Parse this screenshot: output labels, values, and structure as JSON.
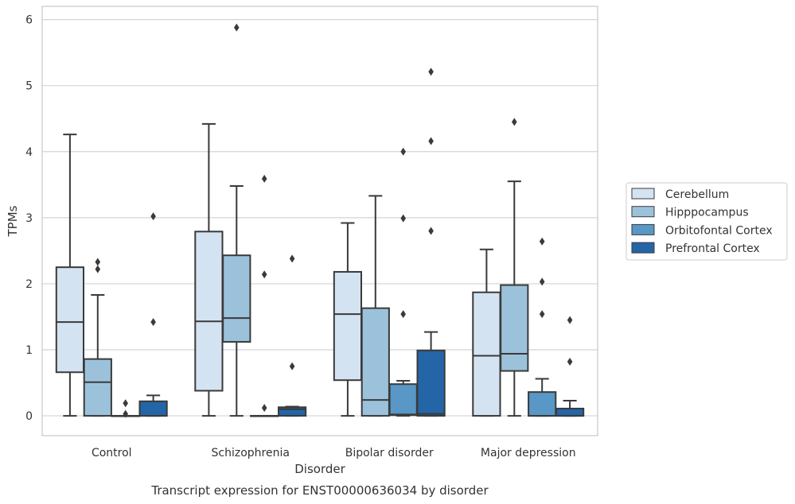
{
  "chart_data": {
    "type": "box",
    "title": "Transcript expression for ENST00000636034 by disorder",
    "xlabel": "Disorder",
    "ylabel": "TPMs",
    "ylim": [
      -0.3,
      6.2
    ],
    "yticks": [
      0,
      1,
      2,
      3,
      4,
      5,
      6
    ],
    "categories": [
      "Control",
      "Schizophrenia",
      "Bipolar disorder",
      "Major depression"
    ],
    "grid": true,
    "legend_position": "right",
    "series": [
      {
        "name": "Cerebellum",
        "color": "#d4e3f1",
        "boxes": [
          {
            "whislo": 0.0,
            "q1": 0.66,
            "med": 1.42,
            "q3": 2.25,
            "whishi": 4.26,
            "fliers": []
          },
          {
            "whislo": 0.0,
            "q1": 0.38,
            "med": 1.43,
            "q3": 2.79,
            "whishi": 4.42,
            "fliers": []
          },
          {
            "whislo": 0.0,
            "q1": 0.54,
            "med": 1.54,
            "q3": 2.18,
            "whishi": 2.92,
            "fliers": []
          },
          {
            "whislo": 0.0,
            "q1": 0.0,
            "med": 0.91,
            "q3": 1.87,
            "whishi": 2.52,
            "fliers": []
          }
        ]
      },
      {
        "name": "Hipppocampus",
        "color": "#9cc2db",
        "boxes": [
          {
            "whislo": 0.0,
            "q1": 0.0,
            "med": 0.51,
            "q3": 0.86,
            "whishi": 1.83,
            "fliers": [
              2.22,
              2.33
            ]
          },
          {
            "whislo": 0.0,
            "q1": 1.12,
            "med": 1.48,
            "q3": 2.43,
            "whishi": 3.48,
            "fliers": [
              5.88
            ]
          },
          {
            "whislo": 0.0,
            "q1": 0.0,
            "med": 0.24,
            "q3": 1.63,
            "whishi": 3.33,
            "fliers": []
          },
          {
            "whislo": 0.0,
            "q1": 0.68,
            "med": 0.94,
            "q3": 1.98,
            "whishi": 3.55,
            "fliers": [
              4.45
            ]
          }
        ]
      },
      {
        "name": "Orbitofontal Cortex",
        "color": "#5897c6",
        "boxes": [
          {
            "whislo": 0.0,
            "q1": 0.0,
            "med": 0.0,
            "q3": 0.0,
            "whishi": 0.0,
            "fliers": [
              0.03,
              0.19
            ]
          },
          {
            "whislo": 0.0,
            "q1": 0.0,
            "med": 0.0,
            "q3": 0.0,
            "whishi": 0.0,
            "fliers": [
              0.12,
              2.14,
              3.59
            ]
          },
          {
            "whislo": 0.0,
            "q1": 0.01,
            "med": 0.02,
            "q3": 0.48,
            "whishi": 0.53,
            "fliers": [
              1.54,
              2.99,
              4.0
            ]
          },
          {
            "whislo": 0.0,
            "q1": 0.0,
            "med": 0.0,
            "q3": 0.36,
            "whishi": 0.56,
            "fliers": [
              1.54,
              2.03,
              2.64
            ]
          }
        ]
      },
      {
        "name": "Prefrontal Cortex",
        "color": "#2465a7",
        "boxes": [
          {
            "whislo": 0.0,
            "q1": 0.0,
            "med": 0.0,
            "q3": 0.22,
            "whishi": 0.31,
            "fliers": [
              1.42,
              3.02
            ]
          },
          {
            "whislo": 0.0,
            "q1": 0.0,
            "med": 0.1,
            "q3": 0.13,
            "whishi": 0.14,
            "fliers": [
              0.75,
              2.38
            ]
          },
          {
            "whislo": 0.0,
            "q1": 0.0,
            "med": 0.03,
            "q3": 0.99,
            "whishi": 1.27,
            "fliers": [
              2.8,
              4.16,
              5.21
            ]
          },
          {
            "whislo": 0.0,
            "q1": 0.0,
            "med": 0.0,
            "q3": 0.11,
            "whishi": 0.23,
            "fliers": [
              0.82,
              1.45
            ]
          }
        ]
      }
    ]
  }
}
